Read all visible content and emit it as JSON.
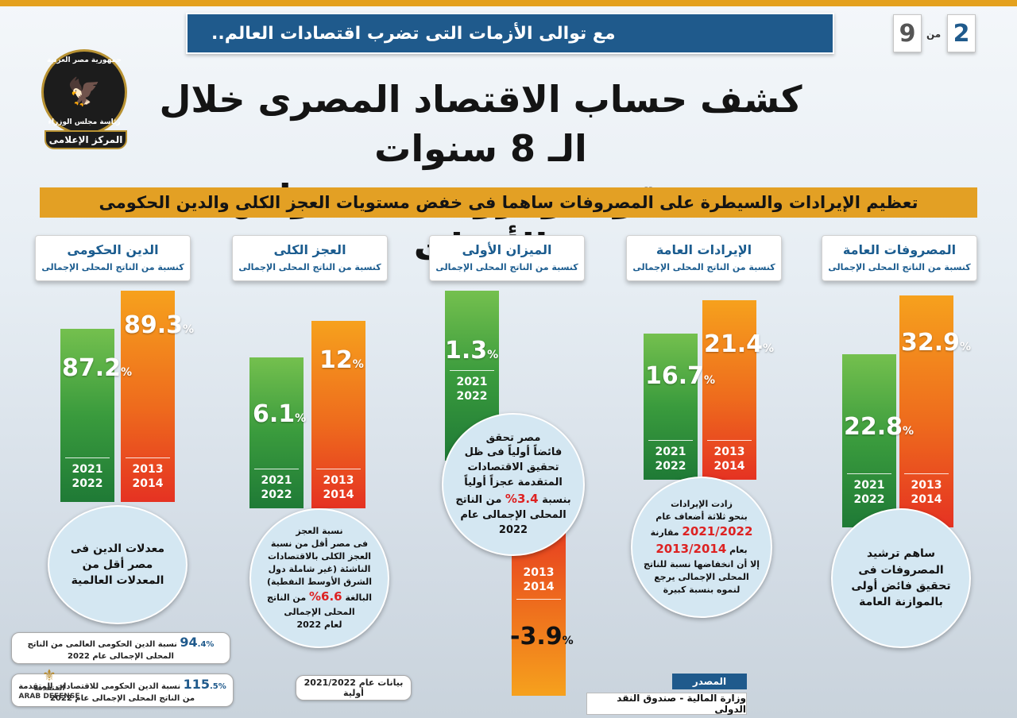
{
  "header": {
    "banner": "مع توالى الأزمات التى تضرب اقتصادات العالم..",
    "page_current": "2",
    "page_of_label": "من",
    "page_total": "9"
  },
  "logo": {
    "ring_top": "جمهورية مصر العربية",
    "ring_bottom": "رئاسة مجلس الوزراء",
    "ribbon": "المركز الإعلامى"
  },
  "title": {
    "line1": "كشف حساب الاقتصاد المصرى خلال الـ 8 سنوات",
    "line2": "يثبت قوته ومرونته فى مواجهة الأزمات"
  },
  "subtitle": "تعظيم الإيرادات والسيطرة على المصروفات ساهما فى خفض مستويات العجز الكلى والدين الحكومى",
  "unit_label": "كنسبة من الناتج المحلى الإجمالى",
  "year_new": [
    "2021",
    "2022"
  ],
  "year_old": [
    "2013",
    "2014"
  ],
  "indicators": [
    {
      "name": "المصروفات العامة",
      "value_2013": "32.9",
      "value_2021": "22.8",
      "pct": "%",
      "note": "ساهم ترشيد المصروفات فى تحقيق فائض أولى بالموازنة العامة"
    },
    {
      "name": "الإيرادات العامة",
      "value_2013": "21.4",
      "value_2021": "16.7",
      "pct": "%",
      "note_lines": [
        "زادت الإيرادات",
        "بنحو ثلاثة أضعاف عام",
        "2021/2022",
        "مقارنة",
        "بعام",
        "2013/2014",
        "إلا أن انخفاضها نسبة للناتج",
        "المحلى الإجمالى يرجع",
        "لنموه بنسبة كبيرة"
      ]
    },
    {
      "name": "الميزان الأولى",
      "value_2013": "-3.9",
      "value_2021": "1.3",
      "pct": "%",
      "note_lines": [
        "مصر تحقق",
        "فائضاً أولياً فى ظل",
        "تحقيق الاقتصادات",
        "المتقدمة عجزاً أولياً",
        "بنسبة",
        "3.4%",
        "من الناتج",
        "المحلى الإجمالى عام",
        "2022"
      ]
    },
    {
      "name": "العجز الكلى",
      "value_2013": "12",
      "value_2021": "6.1",
      "pct": "%",
      "note_lines": [
        "نسبة العجز",
        "فى مصر أقل من نسبة",
        "العجز الكلى بالاقتصادات",
        "الناشئة (غير شاملة دول",
        "الشرق الأوسط النفطية)",
        "البالغة",
        "6.6%",
        "من الناتج",
        "المحلى الإجمالى",
        "لعام 2022"
      ]
    },
    {
      "name": "الدين الحكومى",
      "value_2013": "89.3",
      "value_2021": "87.2",
      "pct": "%",
      "note": "معدلات الدين فى مصر أقل من المعدلات العالمية"
    }
  ],
  "global_debt": {
    "value1": "94",
    "value1_sub": ".4%",
    "text1": "نسبة الدين الحكومى العالمى من الناتج المحلى الإجمالى عام 2022",
    "value2": "115",
    "value2_sub": ".5%",
    "text2": "نسبة الدين الحكومى للاقتصادات المتقدمة من الناتج المحلى الإجمالى عام 2022"
  },
  "data_note": "بيانات عام 2021/2022 أولية",
  "source": {
    "label": "المصدر",
    "text": "وزارة المالية - صندوق النقد الدولى"
  },
  "watermark": {
    "line1": "المتقدمة",
    "line2": "ARAB DEFENSE"
  },
  "colors": {
    "banner_blue": "#1f5a8c",
    "accent_orange": "#e3a024",
    "bar_green": "#3a9b3d",
    "bar_orange": "#ee6b1d",
    "highlight_red": "#d22222"
  }
}
